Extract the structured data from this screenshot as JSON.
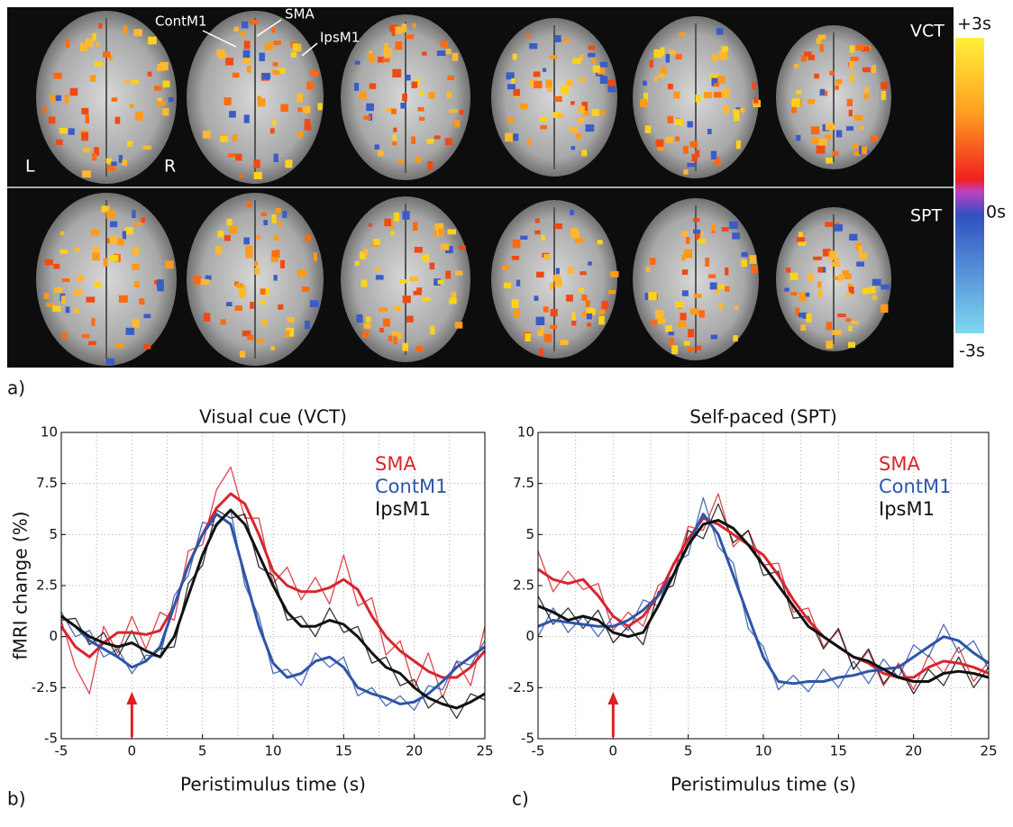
{
  "figure": {
    "panel_labels": [
      "a)",
      "b)",
      "c)"
    ],
    "region_labels": [
      "ContM1",
      "SMA",
      "IpsM1"
    ],
    "row_labels": [
      "VCT",
      "SPT"
    ],
    "side_labels": [
      "L",
      "R"
    ],
    "colorbar_labels": [
      "+3s",
      "0s",
      "-3s"
    ]
  },
  "chart_data": [
    {
      "type": "line",
      "title": "Visual cue (VCT)",
      "xlabel": "Peristimulus time (s)",
      "ylabel": "fMRI change (%)",
      "x": [
        -5,
        -4,
        -3,
        -2,
        -1,
        0,
        1,
        2,
        3,
        4,
        5,
        6,
        7,
        8,
        9,
        10,
        11,
        12,
        13,
        14,
        15,
        16,
        17,
        18,
        19,
        20,
        21,
        22,
        23,
        24,
        25
      ],
      "series": [
        {
          "name": "SMA",
          "color": "#d7262f",
          "values": [
            0.5,
            -0.5,
            -1,
            -0.3,
            0.2,
            0.2,
            0.1,
            0.3,
            1.5,
            3.5,
            5,
            6.3,
            7,
            6.5,
            5,
            3.2,
            2.5,
            2.2,
            2.2,
            2.4,
            2.8,
            2.3,
            1,
            0,
            -0.7,
            -1.2,
            -1.7,
            -2,
            -2,
            -1.5,
            -0.7
          ],
          "raw_values": [
            0.8,
            -1.5,
            -2.8,
            0.5,
            -0.8,
            1.0,
            -0.6,
            1.2,
            0.8,
            4.2,
            4.5,
            7.2,
            8.3,
            5.8,
            5.8,
            2.6,
            3.4,
            1.8,
            2.9,
            1.6,
            4.0,
            1.5,
            1.9,
            -0.9,
            -0.2,
            -2.5,
            -0.8,
            -3.0,
            -1.2,
            -2.4,
            0.5
          ]
        },
        {
          "name": "ContM1",
          "color": "#2e55a8",
          "values": [
            1,
            0.5,
            -0.2,
            -0.6,
            -1,
            -1.5,
            -1.2,
            -0.5,
            1.5,
            3.5,
            5,
            6,
            5.5,
            3,
            0.5,
            -1.3,
            -2,
            -1.8,
            -1.2,
            -1,
            -1.5,
            -2.5,
            -2.8,
            -3,
            -3.3,
            -3.2,
            -2.8,
            -2.2,
            -1.5,
            -1,
            -0.5
          ],
          "raw_values": [
            1.2,
            0.0,
            0.3,
            -1.0,
            -0.6,
            -1.8,
            -0.9,
            -1.0,
            2.0,
            3.0,
            5.6,
            5.4,
            6.2,
            2.5,
            1.0,
            -1.8,
            -1.6,
            -2.4,
            -0.8,
            -1.5,
            -1.0,
            -2.9,
            -2.5,
            -3.4,
            -2.9,
            -3.6,
            -2.4,
            -2.6,
            -1.2,
            -1.4,
            -0.2
          ]
        },
        {
          "name": "IpsM1",
          "color": "#111111",
          "values": [
            1,
            0.5,
            0,
            -0.3,
            -0.5,
            -0.3,
            -0.7,
            -1,
            0,
            2,
            4,
            5.5,
            6.2,
            5.5,
            4,
            2.5,
            1.2,
            0.5,
            0.5,
            0.8,
            0.6,
            0,
            -0.8,
            -1.5,
            -1.8,
            -2.5,
            -3,
            -3.3,
            -3.5,
            -3.2,
            -2.8
          ],
          "raw_values": [
            0.8,
            0.9,
            -0.4,
            0.2,
            -1.0,
            0.3,
            -1.2,
            -0.6,
            -0.5,
            2.6,
            3.5,
            6.2,
            5.8,
            6.0,
            3.4,
            3.0,
            0.8,
            1.0,
            0.0,
            1.4,
            0.2,
            0.5,
            -1.3,
            -1.0,
            -2.4,
            -2.1,
            -3.5,
            -2.9,
            -4.0,
            -2.8,
            -3.1
          ]
        }
      ],
      "xlim": [
        -5,
        25
      ],
      "xticks": [
        -5,
        0,
        5,
        10,
        15,
        20,
        25
      ],
      "xminor": [
        -2.5,
        2.5,
        7.5,
        12.5,
        17.5,
        22.5
      ],
      "ylim": [
        -5,
        10
      ],
      "yticks": [
        -5,
        -2.5,
        0,
        2.5,
        5,
        7.5,
        10
      ],
      "grid": true,
      "legend": "upper right",
      "marker_x": 0,
      "marker_color": "#e02020"
    },
    {
      "type": "line",
      "title": "Self-paced (SPT)",
      "xlabel": "Peristimulus time (s)",
      "x": [
        -5,
        -4,
        -3,
        -2,
        -1,
        0,
        1,
        2,
        3,
        4,
        5,
        6,
        7,
        8,
        9,
        10,
        11,
        12,
        13,
        14,
        15,
        16,
        17,
        18,
        19,
        20,
        21,
        22,
        23,
        24,
        25
      ],
      "series": [
        {
          "name": "SMA",
          "color": "#d7262f",
          "values": [
            3.3,
            2.8,
            2.6,
            2.8,
            2,
            1,
            0.5,
            1,
            2,
            3.5,
            4.8,
            5.8,
            5.5,
            5,
            4.5,
            4,
            3,
            1.8,
            0.8,
            0,
            -0.5,
            -1,
            -1.3,
            -1.8,
            -2,
            -2,
            -1.5,
            -1.2,
            -1.3,
            -1.5,
            -1.8
          ],
          "raw_values": [
            4.2,
            2.2,
            3.2,
            2.3,
            2.6,
            0.3,
            1.2,
            0.5,
            2.5,
            3.0,
            5.4,
            5.2,
            7.0,
            4.4,
            5.2,
            3.5,
            3.6,
            1.2,
            1.4,
            -0.5,
            0.3,
            -1.6,
            -0.7,
            -2.4,
            -1.3,
            -2.6,
            -0.9,
            -1.8,
            -0.5,
            -2.2,
            -1.2
          ]
        },
        {
          "name": "ContM1",
          "color": "#2e55a8",
          "values": [
            0.5,
            0.8,
            0.7,
            0.6,
            0.5,
            0.5,
            0.8,
            1.3,
            2,
            3,
            4.5,
            6,
            5,
            3,
            1,
            -1,
            -2.2,
            -2.3,
            -2.2,
            -2.2,
            -2,
            -1.9,
            -1.7,
            -1.6,
            -1.5,
            -1,
            -0.5,
            0,
            -0.2,
            -0.8,
            -1.3
          ],
          "raw_values": [
            0.0,
            1.4,
            0.2,
            1.0,
            0.0,
            1.0,
            0.3,
            1.8,
            1.5,
            3.6,
            4.0,
            6.8,
            4.4,
            3.6,
            0.4,
            -0.5,
            -2.6,
            -1.9,
            -2.7,
            -1.6,
            -2.5,
            -1.2,
            -2.3,
            -1.1,
            -2.0,
            -0.4,
            -1.0,
            0.6,
            -0.8,
            -0.2,
            -1.6
          ]
        },
        {
          "name": "IpsM1",
          "color": "#111111",
          "values": [
            1.5,
            1.2,
            0.8,
            1,
            0.8,
            0.2,
            0,
            0.2,
            1.5,
            3,
            4.5,
            5.5,
            5.7,
            5.3,
            4.5,
            3.5,
            2.5,
            1.5,
            0.5,
            0,
            -0.5,
            -1,
            -1.2,
            -1.6,
            -2,
            -2.2,
            -2.2,
            -1.8,
            -1.7,
            -1.8,
            -2
          ],
          "raw_values": [
            2.0,
            0.6,
            1.4,
            0.4,
            1.3,
            -0.3,
            0.5,
            -0.4,
            2.2,
            2.5,
            5.2,
            4.8,
            6.5,
            4.6,
            5.2,
            3.0,
            3.2,
            0.9,
            1.0,
            -0.6,
            0.4,
            -1.6,
            -0.6,
            -2.3,
            -1.4,
            -2.8,
            -1.6,
            -2.4,
            -1.0,
            -2.5,
            -1.5
          ]
        }
      ],
      "xlim": [
        -5,
        25
      ],
      "xticks": [
        -5,
        0,
        5,
        10,
        15,
        20,
        25
      ],
      "xminor": [
        -2.5,
        2.5,
        7.5,
        12.5,
        17.5,
        22.5
      ],
      "ylim": [
        -5,
        10
      ],
      "yticks": [
        -5,
        -2.5,
        0,
        2.5,
        5,
        7.5,
        10
      ],
      "grid": true,
      "legend": "upper right",
      "marker_x": 0,
      "marker_color": "#e02020"
    }
  ]
}
